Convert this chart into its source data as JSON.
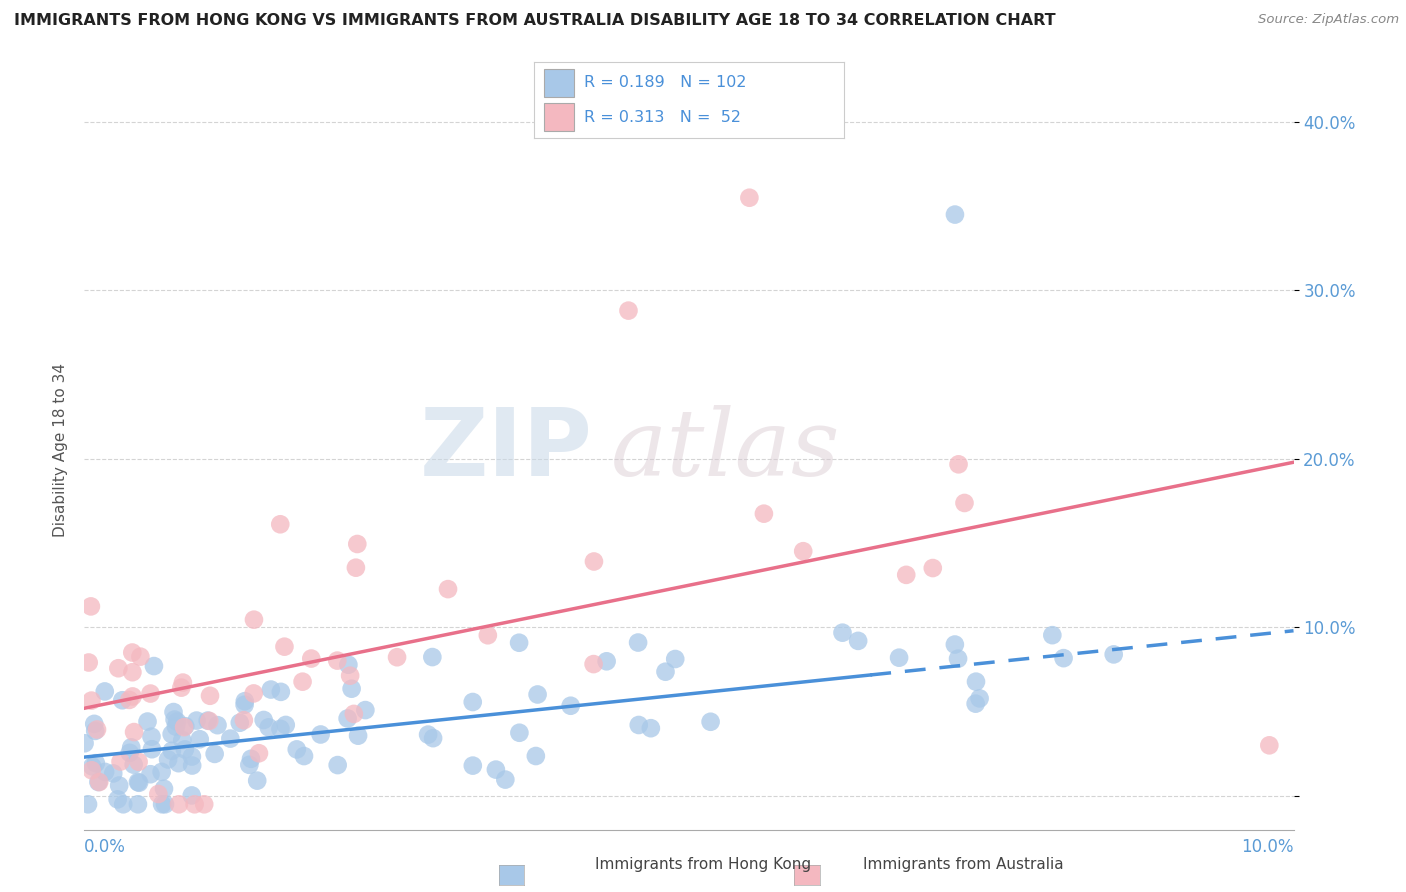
{
  "title": "IMMIGRANTS FROM HONG KONG VS IMMIGRANTS FROM AUSTRALIA DISABILITY AGE 18 TO 34 CORRELATION CHART",
  "source": "Source: ZipAtlas.com",
  "ylabel": "Disability Age 18 to 34",
  "xlim": [
    0.0,
    0.1
  ],
  "ylim": [
    -0.02,
    0.43
  ],
  "yticks": [
    0.0,
    0.1,
    0.2,
    0.3,
    0.4
  ],
  "ytick_labels": [
    "",
    "10.0%",
    "20.0%",
    "30.0%",
    "40.0%"
  ],
  "legend_row1": "R = 0.189   N = 102",
  "legend_row2": "R = 0.313   N =  52",
  "color_hk": "#a8c8e8",
  "color_au": "#f4b8c0",
  "color_hk_line": "#4a90d9",
  "color_au_line": "#e8708a",
  "watermark_zip": "ZIP",
  "watermark_atlas": "atlas",
  "hk_line_x0": 0.0,
  "hk_line_y0": 0.023,
  "hk_line_x1": 0.1,
  "hk_line_y1": 0.098,
  "au_line_x0": 0.0,
  "au_line_y0": 0.052,
  "au_line_x1": 0.1,
  "au_line_y1": 0.198,
  "background_color": "#ffffff",
  "grid_color": "#d0d0d0"
}
